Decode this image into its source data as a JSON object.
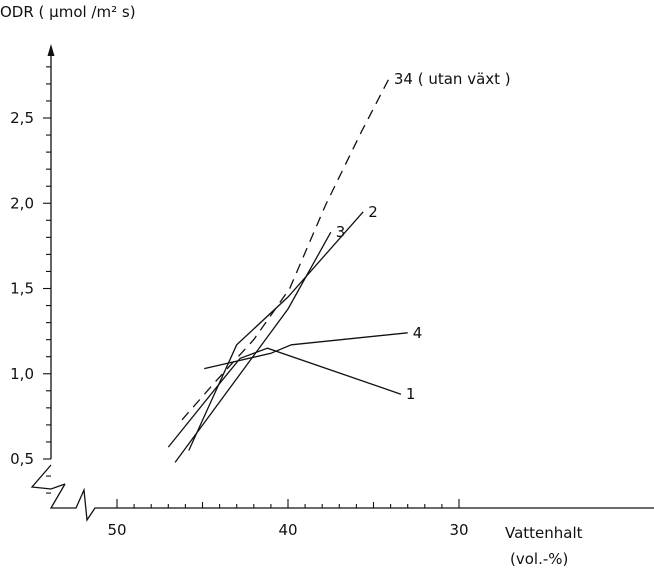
{
  "chart_data": {
    "type": "line",
    "xlabel": "Vattenhalt",
    "xlabel_unit": "(vol.-%)",
    "ylabel": "ODR ( µmol /m² s)",
    "x_reversed": true,
    "y_axis_break": true,
    "x_axis_break": true,
    "xlim": [
      54,
      28
    ],
    "ylim": [
      0.2,
      2.9
    ],
    "x_ticks": [
      50,
      40,
      30
    ],
    "x_tick_labels": [
      "50",
      "40",
      "30"
    ],
    "y_ticks": [
      0.5,
      1.0,
      1.5,
      2.0,
      2.5
    ],
    "y_tick_labels": [
      "0,5",
      "1,0",
      "1,5",
      "2,0",
      "2,5"
    ],
    "grid": false,
    "series": [
      {
        "name": "34 ( utan växt )",
        "style": "dashed",
        "label": "34 ( utan växt )",
        "points": [
          [
            46.2,
            0.73
          ],
          [
            44.1,
            0.97
          ],
          [
            42.0,
            1.2
          ],
          [
            39.9,
            1.5
          ],
          [
            37.8,
            1.99
          ],
          [
            35.7,
            2.42
          ],
          [
            34.1,
            2.73
          ]
        ]
      },
      {
        "name": "3",
        "style": "solid",
        "label": "3",
        "points": [
          [
            46.6,
            0.48
          ],
          [
            40.0,
            1.38
          ],
          [
            37.5,
            1.83
          ]
        ]
      },
      {
        "name": "2",
        "style": "solid",
        "label": "2",
        "points": [
          [
            45.8,
            0.55
          ],
          [
            43.0,
            1.17
          ],
          [
            40.0,
            1.45
          ],
          [
            35.6,
            1.95
          ]
        ]
      },
      {
        "name": "4",
        "style": "solid",
        "label": "4",
        "points": [
          [
            44.9,
            1.03
          ],
          [
            41.0,
            1.12
          ],
          [
            39.8,
            1.17
          ],
          [
            33.0,
            1.24
          ]
        ]
      },
      {
        "name": "1",
        "style": "solid",
        "label": "1",
        "points": [
          [
            47.0,
            0.57
          ],
          [
            43.7,
            0.98
          ],
          [
            42.8,
            1.09
          ],
          [
            41.2,
            1.15
          ],
          [
            33.4,
            0.88
          ]
        ]
      }
    ]
  }
}
